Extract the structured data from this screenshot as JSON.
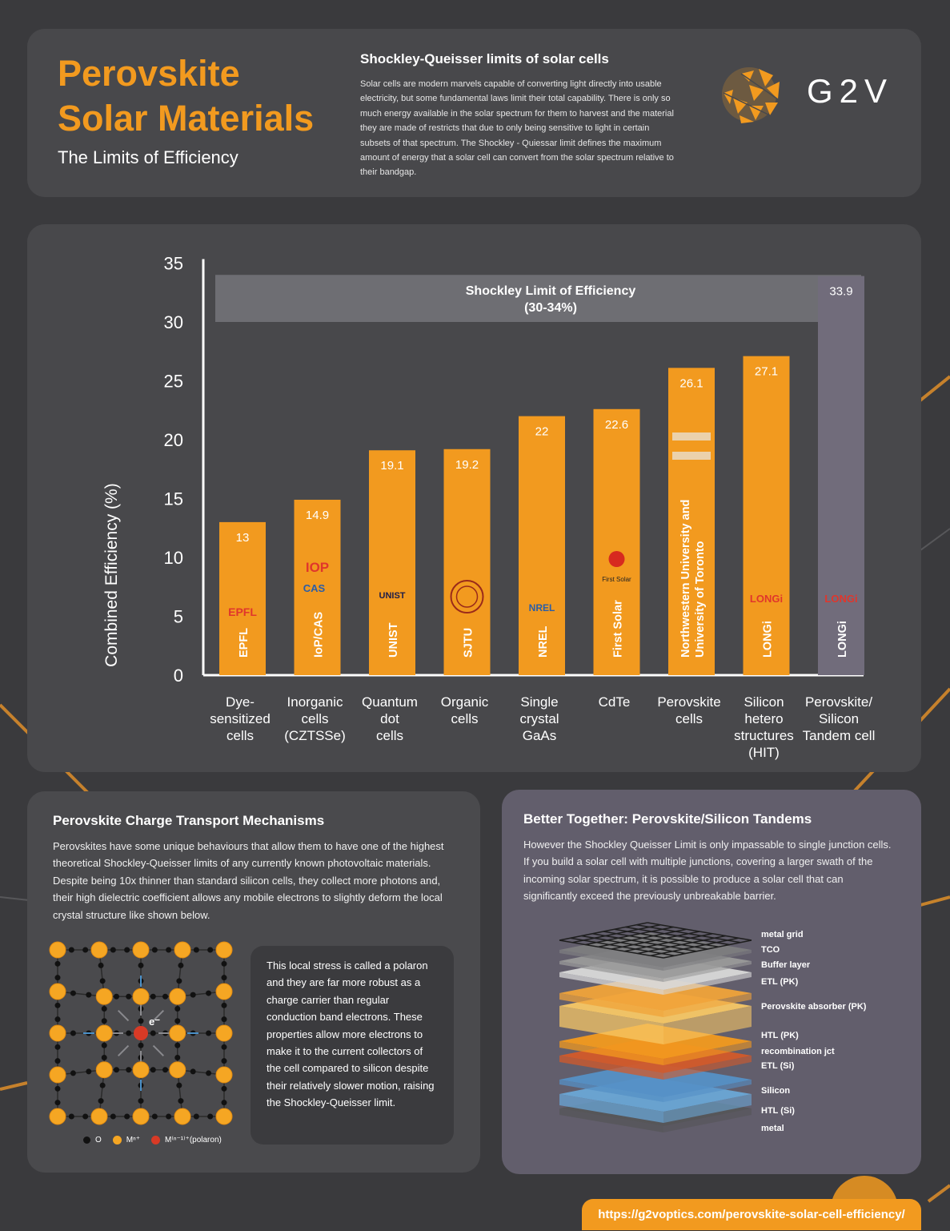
{
  "header": {
    "title_line1": "Perovskite",
    "title_line2": "Solar Materials",
    "subtitle": "The Limits of Efficiency",
    "sq_title": "Shockley-Queisser limits of solar cells",
    "sq_body": "Solar cells are modern marvels capable of converting light directly into usable electricity, but some fundamental laws limit their total capability. There is only so much energy available in the solar spectrum for them to harvest and the material they are made of restricts that due to only being sensitive to light in certain subsets of that spectrum. The Shockley - Quiessar limit defines the maximum amount of energy that a solar cell can convert from the solar spectrum relative to their bandgap.",
    "logo_text": "G2V"
  },
  "chart_data": {
    "type": "bar",
    "ylabel": "Combined Efficiency (%)",
    "ylim": [
      0,
      35
    ],
    "yticks": [
      0,
      5,
      10,
      15,
      20,
      25,
      30,
      35
    ],
    "band": {
      "label_line1": "Shockley Limit of Efficiency",
      "label_line2": "(30-34%)",
      "range": [
        30,
        34
      ]
    },
    "categories": [
      [
        "Dye-",
        "sensitized",
        "cells"
      ],
      [
        "Inorganic",
        "cells",
        "(CZTSSe)"
      ],
      [
        "Quantum",
        "dot",
        "cells"
      ],
      [
        "Organic",
        "cells"
      ],
      [
        "Single",
        "crystal",
        "GaAs"
      ],
      [
        "CdTe"
      ],
      [
        "Perovskite",
        "cells"
      ],
      [
        "Silicon",
        "hetero",
        "structures",
        "(HIT)"
      ],
      [
        "Perovskite/",
        "Silicon",
        "Tandem cell"
      ]
    ],
    "values": [
      13,
      14.9,
      19.1,
      19.2,
      22,
      22.6,
      26.1,
      27.1,
      33.9
    ],
    "value_labels": [
      "13",
      "14.9",
      "19.1",
      "19.2",
      "22",
      "22.6",
      "26.1",
      "27.1",
      "33.9"
    ],
    "institutions": [
      [
        "EPFL"
      ],
      [
        "IoP/CAS"
      ],
      [
        "UNIST"
      ],
      [
        "SJTU"
      ],
      [
        "NREL"
      ],
      [
        "First Solar"
      ],
      [
        "Northwestern University and",
        "University of Toronto"
      ],
      [
        "LONGi"
      ],
      [
        "LONGi"
      ]
    ],
    "logos": [
      "EPFL",
      "IOP",
      "UNIST",
      "",
      "NREL",
      "First Solar",
      "",
      "LONGi",
      "LONGi"
    ],
    "logo_extra": {
      "cas": "CAS"
    },
    "bar_color": "#f29a1f",
    "tandem_bar_color": "#716c7b"
  },
  "charge": {
    "title": "Perovskite Charge Transport Mechanisms",
    "body": "Perovskites have some unique behaviours that allow them to have one of the highest theoretical Shockley-Queisser limits of any currently known photovoltaic materials. Despite being 10x thinner than standard silicon cells, they collect more photons and, their high dielectric coefficient allows any mobile electrons to slightly deform the local crystal structure like shown below.",
    "polaron_text": "This local stress is called a polaron and they are far more robust as a charge carrier than regular conduction band electrons. These properties allow more electrons to make it to the current collectors of the cell compared to silicon despite their relatively slower motion, raising the Shockley-Queisser limit.",
    "electron_label": "e⁻",
    "legend": {
      "o": "O",
      "m": "Mⁿ⁺",
      "polaron": "M⁽ⁿ⁻¹⁾⁺(polaron)"
    }
  },
  "tandem": {
    "title": "Better Together: Perovskite/Silicon Tandems",
    "body": "However the Shockley Queisser Limit is only impassable to single junction cells. If you build a solar cell with multiple junctions, covering a larger swath of the incoming solar spectrum, it is possible to produce a solar cell that can significantly exceed the previously unbreakable barrier.",
    "layers": [
      "metal grid",
      "TCO",
      "Buffer layer",
      "ETL (PK)",
      "Perovskite absorber (PK)",
      "HTL (PK)",
      "recombination jct",
      "ETL (Si)",
      "Silicon",
      "HTL (Si)",
      "metal"
    ]
  },
  "footer": {
    "url": "https://g2voptics.com/perovskite-solar-cell-efficiency/"
  }
}
